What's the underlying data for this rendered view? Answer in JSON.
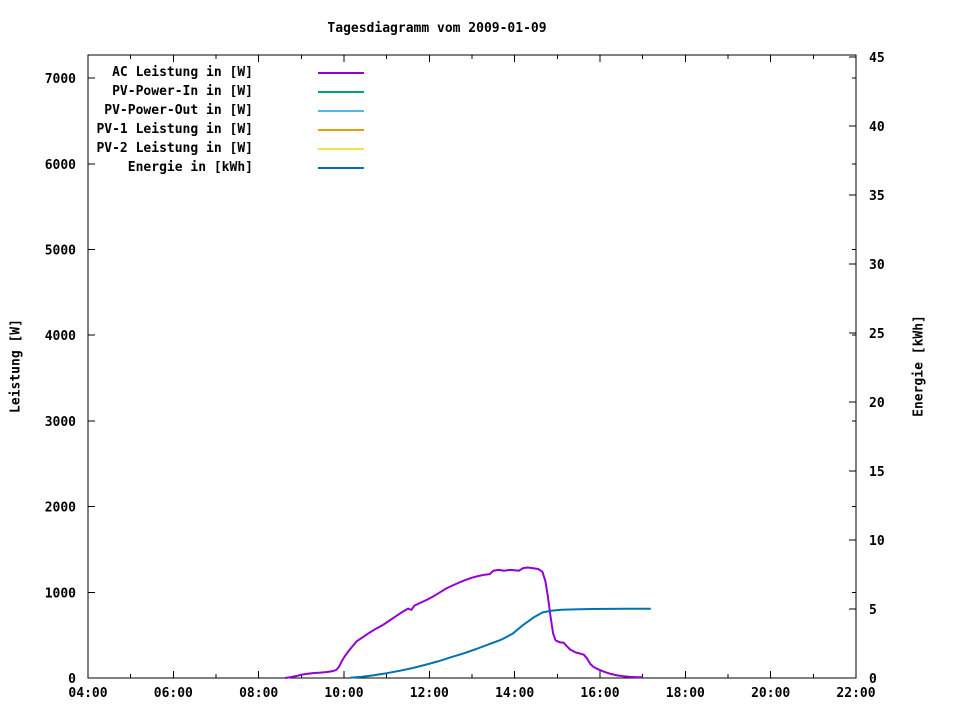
{
  "title": "Tagesdiagramm vom 2009-01-09",
  "axes": {
    "left": {
      "label": "Leistung [W]",
      "tick_values": [
        0,
        1000,
        2000,
        3000,
        4000,
        5000,
        6000,
        7000
      ],
      "range_shown": [
        0,
        7270
      ]
    },
    "right": {
      "label": "Energie [kWh]",
      "tick_values": [
        0,
        5,
        10,
        15,
        20,
        25,
        30,
        35,
        40,
        45
      ],
      "range_shown": [
        0,
        45
      ]
    },
    "x": {
      "tick_labels": [
        "04:00",
        "06:00",
        "08:00",
        "10:00",
        "12:00",
        "14:00",
        "16:00",
        "18:00",
        "20:00",
        "22:00"
      ],
      "major_hours": [
        4,
        6,
        8,
        10,
        12,
        14,
        16,
        18,
        20,
        22
      ],
      "minor_hours": [
        5,
        7,
        9,
        11,
        13,
        15,
        17,
        19,
        21
      ],
      "range_hours": [
        4,
        22
      ]
    }
  },
  "chart_data": {
    "type": "line",
    "title": "Tagesdiagramm vom 2009-01-09",
    "xlabel": "",
    "ylabel_left": "Leistung [W]",
    "ylabel_right": "Energie [kWh]",
    "x_unit": "hour_of_day",
    "xlim": [
      4,
      22
    ],
    "ylim_left": [
      0,
      7270
    ],
    "ylim_right": [
      0,
      45
    ],
    "grid": false,
    "legend_position": "top-left-inside",
    "series": [
      {
        "name": "AC Leistung in [W]",
        "color": "#9400d3",
        "axis": "left",
        "points": [
          [
            8.62,
            0
          ],
          [
            8.75,
            10
          ],
          [
            8.9,
            25
          ],
          [
            9.0,
            38
          ],
          [
            9.15,
            50
          ],
          [
            9.3,
            58
          ],
          [
            9.45,
            63
          ],
          [
            9.6,
            70
          ],
          [
            9.72,
            78
          ],
          [
            9.82,
            95
          ],
          [
            9.88,
            130
          ],
          [
            9.95,
            200
          ],
          [
            10.02,
            255
          ],
          [
            10.1,
            310
          ],
          [
            10.2,
            370
          ],
          [
            10.3,
            430
          ],
          [
            10.45,
            480
          ],
          [
            10.6,
            530
          ],
          [
            10.75,
            575
          ],
          [
            10.9,
            615
          ],
          [
            11.05,
            665
          ],
          [
            11.2,
            715
          ],
          [
            11.35,
            765
          ],
          [
            11.5,
            810
          ],
          [
            11.58,
            795
          ],
          [
            11.65,
            845
          ],
          [
            11.8,
            880
          ],
          [
            11.95,
            915
          ],
          [
            12.1,
            955
          ],
          [
            12.25,
            1000
          ],
          [
            12.4,
            1045
          ],
          [
            12.55,
            1080
          ],
          [
            12.7,
            1115
          ],
          [
            12.85,
            1145
          ],
          [
            13.0,
            1170
          ],
          [
            13.15,
            1190
          ],
          [
            13.3,
            1205
          ],
          [
            13.42,
            1212
          ],
          [
            13.5,
            1252
          ],
          [
            13.62,
            1262
          ],
          [
            13.75,
            1252
          ],
          [
            13.88,
            1262
          ],
          [
            14.0,
            1258
          ],
          [
            14.1,
            1252
          ],
          [
            14.2,
            1282
          ],
          [
            14.3,
            1290
          ],
          [
            14.42,
            1282
          ],
          [
            14.55,
            1272
          ],
          [
            14.65,
            1240
          ],
          [
            14.72,
            1130
          ],
          [
            14.78,
            950
          ],
          [
            14.84,
            720
          ],
          [
            14.9,
            520
          ],
          [
            14.96,
            440
          ],
          [
            15.05,
            418
          ],
          [
            15.15,
            412
          ],
          [
            15.22,
            372
          ],
          [
            15.3,
            332
          ],
          [
            15.42,
            300
          ],
          [
            15.52,
            287
          ],
          [
            15.62,
            272
          ],
          [
            15.7,
            225
          ],
          [
            15.77,
            165
          ],
          [
            15.85,
            128
          ],
          [
            15.95,
            103
          ],
          [
            16.1,
            72
          ],
          [
            16.25,
            48
          ],
          [
            16.4,
            30
          ],
          [
            16.55,
            20
          ],
          [
            16.7,
            13
          ],
          [
            16.85,
            9
          ],
          [
            17.0,
            8
          ]
        ]
      },
      {
        "name": "PV-Power-In in [W]",
        "color": "#009e73",
        "axis": "left",
        "points": []
      },
      {
        "name": "PV-Power-Out in [W]",
        "color": "#56b4e9",
        "axis": "left",
        "points": []
      },
      {
        "name": "PV-1 Leistung in [W]",
        "color": "#e69f00",
        "axis": "left",
        "points": []
      },
      {
        "name": "PV-2 Leistung in [W]",
        "color": "#f0e442",
        "axis": "left",
        "points": []
      },
      {
        "name": "Energie in [kWh]",
        "color": "#0072b2",
        "axis": "right",
        "points": [
          [
            10.14,
            0.02
          ],
          [
            10.4,
            0.08
          ],
          [
            10.7,
            0.2
          ],
          [
            11.0,
            0.35
          ],
          [
            11.3,
            0.52
          ],
          [
            11.6,
            0.72
          ],
          [
            11.9,
            0.95
          ],
          [
            12.2,
            1.2
          ],
          [
            12.5,
            1.5
          ],
          [
            12.8,
            1.78
          ],
          [
            13.1,
            2.1
          ],
          [
            13.4,
            2.45
          ],
          [
            13.7,
            2.8
          ],
          [
            13.95,
            3.2
          ],
          [
            14.2,
            3.85
          ],
          [
            14.45,
            4.4
          ],
          [
            14.65,
            4.75
          ],
          [
            14.85,
            4.88
          ],
          [
            15.1,
            4.94
          ],
          [
            15.4,
            4.97
          ],
          [
            15.8,
            5.0
          ],
          [
            16.2,
            5.01
          ],
          [
            16.6,
            5.02
          ],
          [
            17.19,
            5.02
          ]
        ]
      }
    ]
  },
  "colors": {
    "foreground": "#000000",
    "background": "#ffffff"
  }
}
